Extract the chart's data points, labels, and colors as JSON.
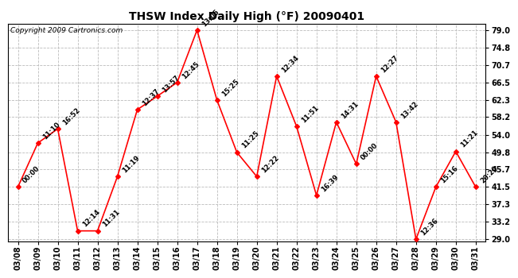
{
  "title": "THSW Index Daily High (°F) 20090401",
  "copyright": "Copyright 2009 Cartronics.com",
  "dates": [
    "03/08",
    "03/09",
    "03/10",
    "03/11",
    "03/12",
    "03/13",
    "03/14",
    "03/15",
    "03/16",
    "03/17",
    "03/18",
    "03/19",
    "03/20",
    "03/21",
    "03/22",
    "03/23",
    "03/24",
    "03/25",
    "03/26",
    "03/27",
    "03/28",
    "03/29",
    "03/30",
    "03/31"
  ],
  "values": [
    41.5,
    52.0,
    55.4,
    31.0,
    31.0,
    44.0,
    60.0,
    63.2,
    66.5,
    79.0,
    62.3,
    49.8,
    44.0,
    68.0,
    56.0,
    39.5,
    57.0,
    47.0,
    68.0,
    57.0,
    29.0,
    41.5,
    50.0,
    41.5
  ],
  "labels": [
    "00:00",
    "11:10",
    "16:52",
    "12:14",
    "11:31",
    "11:19",
    "12:37",
    "13:57",
    "12:45",
    "13:05",
    "15:25",
    "11:25",
    "12:22",
    "12:34",
    "11:51",
    "16:39",
    "14:31",
    "00:00",
    "12:27",
    "13:42",
    "12:36",
    "15:16",
    "11:21",
    "20:20"
  ],
  "yticks": [
    29.0,
    33.2,
    37.3,
    41.5,
    45.7,
    49.8,
    54.0,
    58.2,
    62.3,
    66.5,
    70.7,
    74.8,
    79.0
  ],
  "ymin": 29.0,
  "ymax": 79.0,
  "line_color": "red",
  "marker_color": "red",
  "marker_style": "D",
  "marker_size": 3,
  "bg_color": "white",
  "grid_color": "#bbbbbb",
  "title_fontsize": 10,
  "label_fontsize": 6,
  "copyright_fontsize": 6.5,
  "tick_fontsize": 7
}
